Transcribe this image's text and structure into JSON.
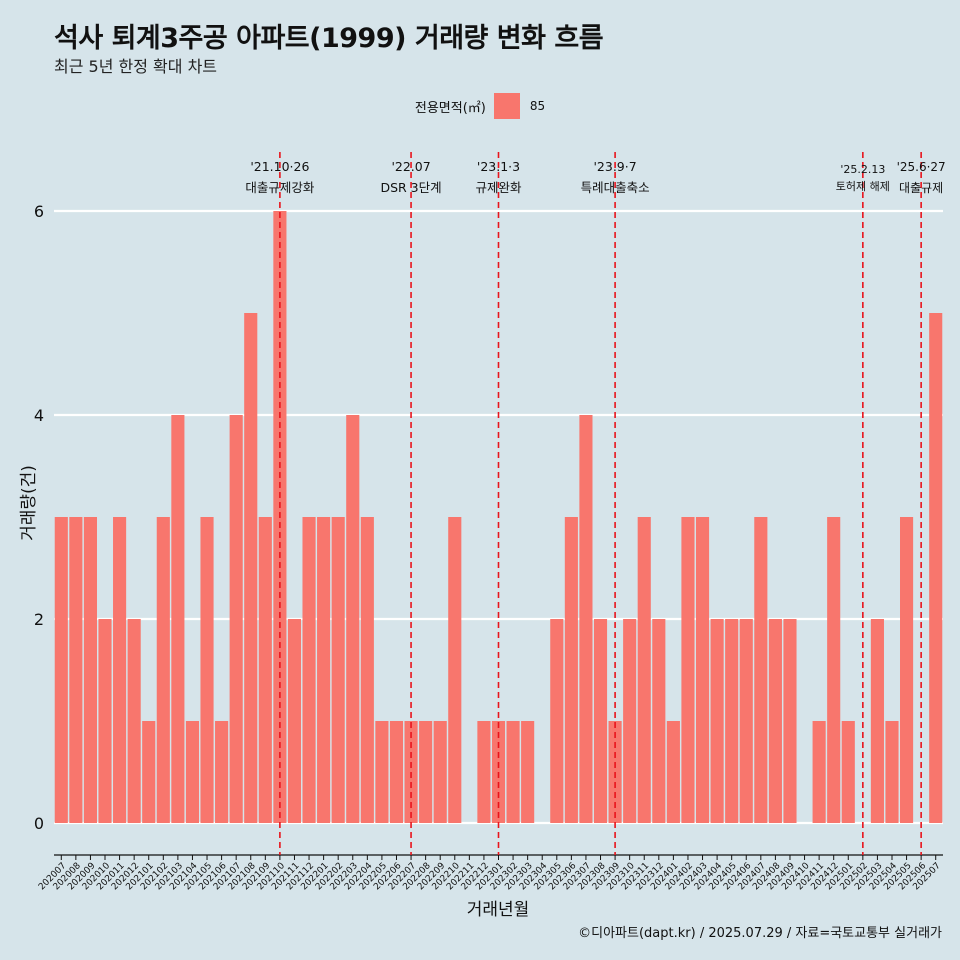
{
  "header": {
    "title": "석사 퇴계3주공 아파트(1999) 거래량 변화 흐름",
    "subtitle": "최근 5년 한정 확대 차트"
  },
  "legend": {
    "title": "전용면적(㎡)",
    "items": [
      {
        "label": "85",
        "color": "#f8766d"
      }
    ]
  },
  "caption": "©디아파트(dapt.kr) / 2025.07.29 / 자료=국토교통부 실거래가",
  "colors": {
    "bar": "#f8766d",
    "background": "#d6e4ea",
    "grid": "#ffffff",
    "annotation": "#e8141c"
  },
  "chart_data": {
    "type": "bar",
    "xlabel": "거래년월",
    "ylabel": "거래량(건)",
    "ylim": [
      0,
      6
    ],
    "yticks": [
      0,
      2,
      4,
      6
    ],
    "grid": true,
    "legend_position": "top",
    "categories": [
      "202007",
      "202008",
      "202009",
      "202010",
      "202011",
      "202012",
      "202101",
      "202102",
      "202103",
      "202104",
      "202105",
      "202106",
      "202107",
      "202108",
      "202109",
      "202110",
      "202111",
      "202112",
      "202201",
      "202202",
      "202203",
      "202204",
      "202205",
      "202206",
      "202207",
      "202208",
      "202209",
      "202210",
      "202211",
      "202212",
      "202301",
      "202302",
      "202303",
      "202304",
      "202305",
      "202306",
      "202307",
      "202308",
      "202309",
      "202310",
      "202311",
      "202312",
      "202401",
      "202402",
      "202403",
      "202404",
      "202405",
      "202406",
      "202407",
      "202408",
      "202409",
      "202410",
      "202411",
      "202412",
      "202501",
      "202502",
      "202503",
      "202504",
      "202505",
      "202506",
      "202507"
    ],
    "series": [
      {
        "name": "85",
        "values": [
          3,
          3,
          3,
          2,
          3,
          2,
          1,
          3,
          4,
          1,
          3,
          1,
          4,
          5,
          3,
          6,
          2,
          3,
          3,
          3,
          4,
          3,
          1,
          1,
          1,
          1,
          1,
          3,
          0,
          1,
          1,
          1,
          1,
          0,
          2,
          3,
          4,
          2,
          1,
          2,
          3,
          2,
          1,
          3,
          3,
          2,
          2,
          2,
          3,
          2,
          2,
          0,
          1,
          3,
          1,
          0,
          2,
          1,
          3,
          0,
          5
        ]
      }
    ],
    "annotations": [
      {
        "category": "202110",
        "date": "'21.10·26",
        "text": "대출규제강화"
      },
      {
        "category": "202207",
        "date": "'22.07",
        "text": "DSR 3단계"
      },
      {
        "category": "202301",
        "date": "'23.1·3",
        "text": "규제완화"
      },
      {
        "category": "202309",
        "date": "'23.9·7",
        "text": "특례대출축소"
      },
      {
        "category": "202502",
        "date": "'25.2.13",
        "text": "토허제 해제"
      },
      {
        "category": "202506",
        "date": "'25.6·27",
        "text": "대출규제"
      }
    ]
  }
}
